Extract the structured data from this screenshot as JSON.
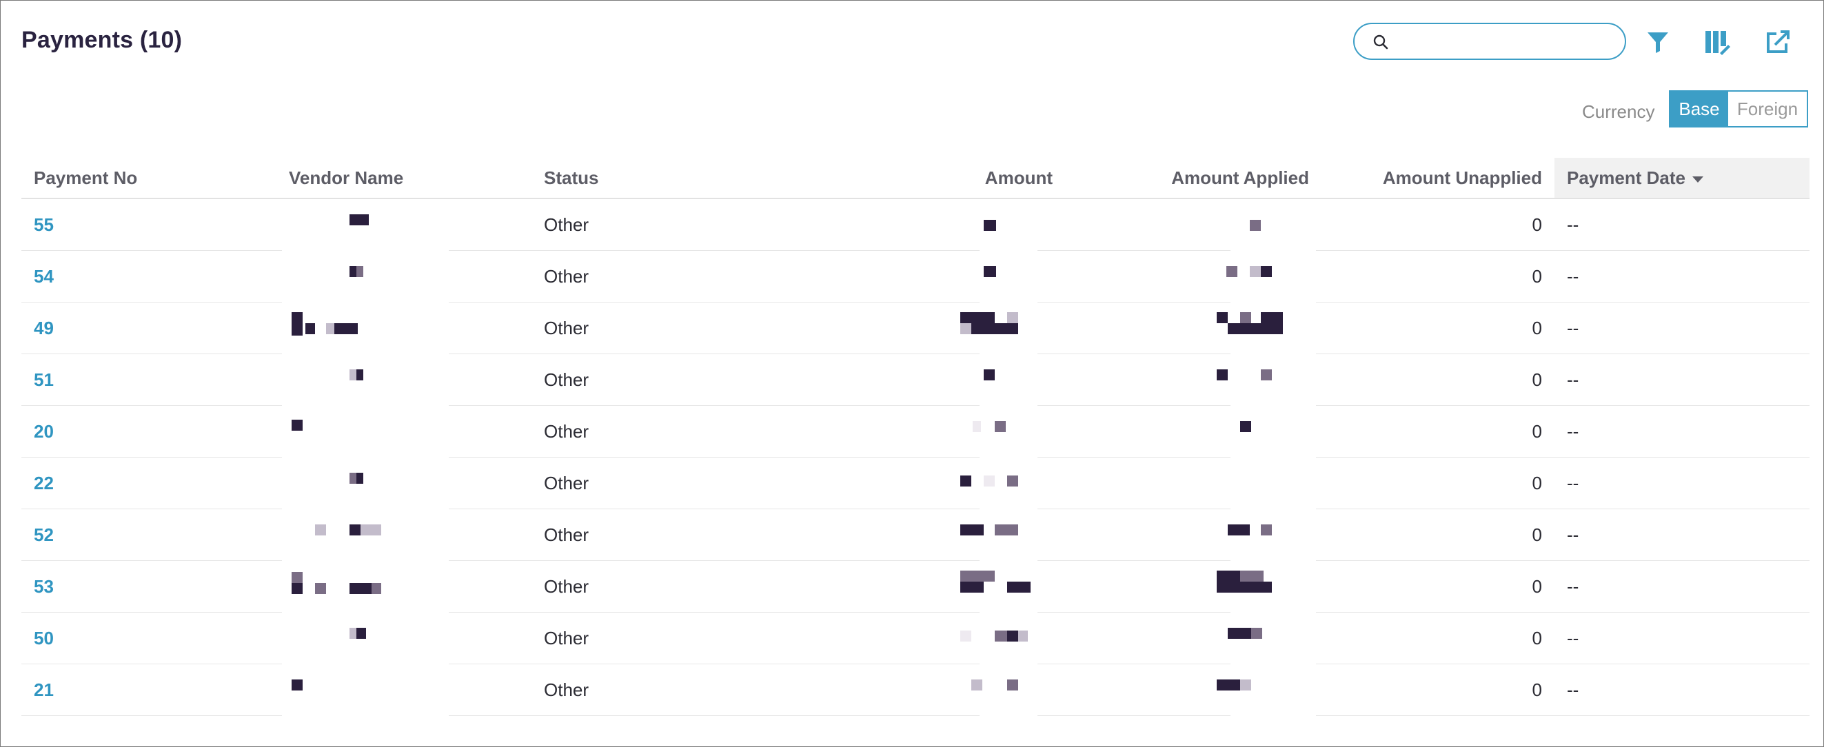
{
  "header": {
    "title": "Payments (10)",
    "search": {
      "value": "",
      "placeholder": ""
    }
  },
  "toolbar": {
    "icons": [
      "search-icon",
      "filter-icon",
      "columns-icon",
      "export-icon"
    ]
  },
  "currency": {
    "label": "Currency",
    "options": [
      "Base",
      "Foreign"
    ],
    "selected": "Base"
  },
  "table": {
    "columns": [
      "Payment No",
      "Vendor Name",
      "Status",
      "Amount",
      "Amount Applied",
      "Amount Unapplied",
      "Payment Date"
    ],
    "sorted_column": "Payment Date",
    "rows": [
      {
        "payment_no": "55",
        "status": "Other",
        "amount_unapplied": "0",
        "payment_date": "--"
      },
      {
        "payment_no": "54",
        "status": "Other",
        "amount_unapplied": "0",
        "payment_date": "--"
      },
      {
        "payment_no": "49",
        "status": "Other",
        "amount_unapplied": "0",
        "payment_date": "--"
      },
      {
        "payment_no": "51",
        "status": "Other",
        "amount_unapplied": "0",
        "payment_date": "--"
      },
      {
        "payment_no": "20",
        "status": "Other",
        "amount_unapplied": "0",
        "payment_date": "--"
      },
      {
        "payment_no": "22",
        "status": "Other",
        "amount_unapplied": "0",
        "payment_date": "--"
      },
      {
        "payment_no": "52",
        "status": "Other",
        "amount_unapplied": "0",
        "payment_date": "--"
      },
      {
        "payment_no": "53",
        "status": "Other",
        "amount_unapplied": "0",
        "payment_date": "--"
      },
      {
        "payment_no": "50",
        "status": "Other",
        "amount_unapplied": "0",
        "payment_date": "--"
      },
      {
        "payment_no": "21",
        "status": "Other",
        "amount_unapplied": "0",
        "payment_date": "--"
      }
    ]
  },
  "colors": {
    "accent": "#3c9ec6",
    "link": "#2f95c1",
    "title": "#2a2340",
    "redaction": "#2a1f3d"
  }
}
